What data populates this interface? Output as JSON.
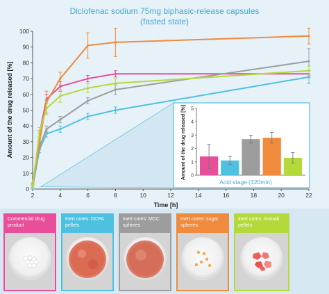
{
  "chart_data": {
    "type": "line",
    "title": "Diclofenac sodium 75mg biphasic-release capsules",
    "subtitle": "(fasted state)",
    "xlabel": "Time [h]",
    "ylabel": "Amount of the drug released [%]",
    "xlim": [
      2,
      22
    ],
    "ylim": [
      0,
      100
    ],
    "x_ticks": [
      2,
      4,
      6,
      8,
      10,
      12,
      14,
      16,
      18,
      20,
      22
    ],
    "y_ticks": [
      0,
      10,
      20,
      30,
      40,
      50,
      60,
      70,
      80,
      90,
      100
    ],
    "grid": false,
    "x": [
      2,
      2.5,
      3,
      4,
      6,
      8,
      22
    ],
    "series": [
      {
        "color": "#e84e9a",
        "values": [
          2,
          35,
          57,
          65,
          70,
          73,
          73
        ],
        "errors": [
          1,
          2,
          3,
          3,
          2,
          2,
          2
        ]
      },
      {
        "color": "#4fc1e0",
        "values": [
          1,
          25,
          35,
          38,
          46,
          50,
          71
        ],
        "errors": [
          1,
          2,
          2,
          2,
          2,
          2,
          4
        ]
      },
      {
        "color": "#9d9d9d",
        "values": [
          2,
          27,
          38,
          44,
          56,
          63,
          81
        ],
        "errors": [
          1,
          2,
          2,
          2,
          2,
          3,
          8
        ]
      },
      {
        "color": "#f08a3c",
        "values": [
          3,
          30,
          55,
          70,
          91,
          93,
          97
        ],
        "errors": [
          1,
          3,
          7,
          4,
          8,
          9,
          5
        ]
      },
      {
        "color": "#b4d93a",
        "values": [
          2,
          36,
          51,
          59,
          64,
          67,
          75
        ],
        "errors": [
          1,
          3,
          4,
          4,
          3,
          3,
          3
        ]
      }
    ],
    "inset": {
      "type": "bar",
      "ylabel": "Amount of the drug released [%]",
      "xlabel": "Acid stage (120min)",
      "ylim": [
        0,
        5
      ],
      "y_ticks": [
        0,
        1,
        2,
        3,
        4,
        5
      ],
      "values": [
        1.4,
        1.1,
        2.7,
        2.8,
        1.3
      ],
      "errors": [
        0.9,
        0.3,
        0.3,
        0.4,
        0.4
      ],
      "colors": [
        "#e84e9a",
        "#4fc1e0",
        "#9d9d9d",
        "#f08a3c",
        "#b4d93a"
      ]
    }
  },
  "photos": [
    {
      "label": "Commercial drug product",
      "border": "#e84e9a",
      "content": "white tablets"
    },
    {
      "label": "Inert cores: DCPA pellets",
      "border": "#4fc1e0",
      "content": "red pellets"
    },
    {
      "label": "Inert cores: MCC spheres",
      "border": "#9d9d9d",
      "content": "red spheres"
    },
    {
      "label": "Inert cores: sugar spheres",
      "border": "#f08a3c",
      "content": "orange spheres"
    },
    {
      "label": "Inert cores: isomalt pellets",
      "border": "#b4d93a",
      "content": "red pellets"
    }
  ]
}
